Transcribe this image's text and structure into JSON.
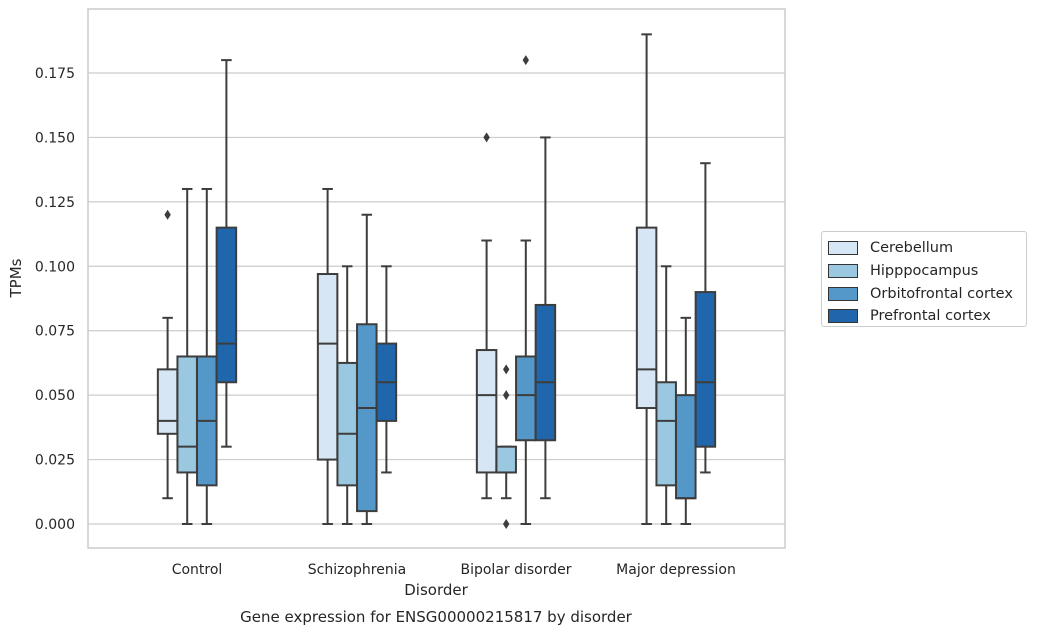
{
  "chart_data": {
    "type": "box",
    "title": "Gene expression for ENSG00000215817 by disorder",
    "xlabel": "Disorder",
    "ylabel": "TPMs",
    "ylim": [
      -0.009,
      0.2
    ],
    "yticks": [
      "0.000",
      "0.025",
      "0.050",
      "0.075",
      "0.100",
      "0.125",
      "0.150",
      "0.175"
    ],
    "grid": true,
    "legend_position": "right",
    "categories": [
      "Control",
      "Schizophrenia",
      "Bipolar disorder",
      "Major depression"
    ],
    "series": [
      {
        "name": "Cerebellum",
        "color": "#d6e6f4",
        "boxes": [
          {
            "whisker_low": 0.01,
            "q1": 0.035,
            "median": 0.04,
            "q3": 0.06,
            "whisker_high": 0.08,
            "outliers": [
              0.12
            ]
          },
          {
            "whisker_low": 0.0,
            "q1": 0.025,
            "median": 0.07,
            "q3": 0.097,
            "whisker_high": 0.13,
            "outliers": []
          },
          {
            "whisker_low": 0.01,
            "q1": 0.02,
            "median": 0.05,
            "q3": 0.0675,
            "whisker_high": 0.11,
            "outliers": [
              0.15
            ]
          },
          {
            "whisker_low": 0.0,
            "q1": 0.045,
            "median": 0.06,
            "q3": 0.115,
            "whisker_high": 0.19,
            "outliers": []
          }
        ]
      },
      {
        "name": "Hipppocampus",
        "color": "#9ac8e0",
        "boxes": [
          {
            "whisker_low": 0.0,
            "q1": 0.02,
            "median": 0.03,
            "q3": 0.065,
            "whisker_high": 0.13,
            "outliers": []
          },
          {
            "whisker_low": 0.0,
            "q1": 0.015,
            "median": 0.035,
            "q3": 0.0625,
            "whisker_high": 0.1,
            "outliers": []
          },
          {
            "whisker_low": 0.01,
            "q1": 0.02,
            "median": 0.02,
            "q3": 0.03,
            "whisker_high": 0.03,
            "outliers": [
              0.06,
              0.05,
              0.0
            ]
          },
          {
            "whisker_low": 0.0,
            "q1": 0.015,
            "median": 0.04,
            "q3": 0.055,
            "whisker_high": 0.1,
            "outliers": []
          }
        ]
      },
      {
        "name": "Orbitofrontal cortex",
        "color": "#5398c9",
        "boxes": [
          {
            "whisker_low": 0.0,
            "q1": 0.015,
            "median": 0.04,
            "q3": 0.065,
            "whisker_high": 0.13,
            "outliers": []
          },
          {
            "whisker_low": 0.0,
            "q1": 0.005,
            "median": 0.045,
            "q3": 0.0775,
            "whisker_high": 0.12,
            "outliers": []
          },
          {
            "whisker_low": 0.0,
            "q1": 0.0325,
            "median": 0.05,
            "q3": 0.065,
            "whisker_high": 0.11,
            "outliers": [
              0.18
            ]
          },
          {
            "whisker_low": 0.0,
            "q1": 0.01,
            "median": 0.01,
            "q3": 0.05,
            "whisker_high": 0.08,
            "outliers": []
          }
        ]
      },
      {
        "name": "Prefrontal cortex",
        "color": "#2066ac",
        "boxes": [
          {
            "whisker_low": 0.03,
            "q1": 0.055,
            "median": 0.07,
            "q3": 0.115,
            "whisker_high": 0.18,
            "outliers": []
          },
          {
            "whisker_low": 0.02,
            "q1": 0.04,
            "median": 0.055,
            "q3": 0.07,
            "whisker_high": 0.1,
            "outliers": []
          },
          {
            "whisker_low": 0.01,
            "q1": 0.0325,
            "median": 0.055,
            "q3": 0.085,
            "whisker_high": 0.15,
            "outliers": []
          },
          {
            "whisker_low": 0.02,
            "q1": 0.03,
            "median": 0.055,
            "q3": 0.09,
            "whisker_high": 0.14,
            "outliers": []
          }
        ]
      }
    ]
  }
}
